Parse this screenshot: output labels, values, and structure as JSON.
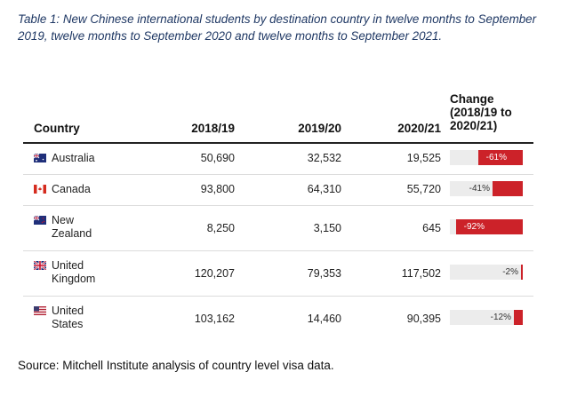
{
  "caption": "Table 1: New Chinese international students by destination country in twelve months to September 2019, twelve months to September 2020 and twelve months to September 2021.",
  "headers": {
    "country": "Country",
    "y1": "2018/19",
    "y2": "2019/20",
    "y3": "2020/21",
    "change": "Change (2018/19 to 2020/21)"
  },
  "rows": [
    {
      "line1": "Australia",
      "line2": "",
      "flag": "australia-flag-icon",
      "y1": "50,690",
      "y2": "32,532",
      "y3": "19,525",
      "change_label": "-61%",
      "change_pct": -61
    },
    {
      "line1": "Canada",
      "line2": "",
      "flag": "canada-flag-icon",
      "y1": "93,800",
      "y2": "64,310",
      "y3": "55,720",
      "change_label": "-41%",
      "change_pct": -41
    },
    {
      "line1": "New",
      "line2": "Zealand",
      "flag": "new-zealand-flag-icon",
      "y1": "8,250",
      "y2": "3,150",
      "y3": "645",
      "change_label": "-92%",
      "change_pct": -92
    },
    {
      "line1": "United",
      "line2": "Kingdom",
      "flag": "united-kingdom-flag-icon",
      "y1": "120,207",
      "y2": "79,353",
      "y3": "117,502",
      "change_label": "-2%",
      "change_pct": -2
    },
    {
      "line1": "United",
      "line2": "States",
      "flag": "united-states-flag-icon",
      "y1": "103,162",
      "y2": "14,460",
      "y3": "90,395",
      "change_label": "-12%",
      "change_pct": -12
    }
  ],
  "colors": {
    "caption": "#1f3864",
    "bar": "#cc2229",
    "bar_track": "#ececec"
  },
  "source": "Source: Mitchell Institute analysis of country level visa data."
}
